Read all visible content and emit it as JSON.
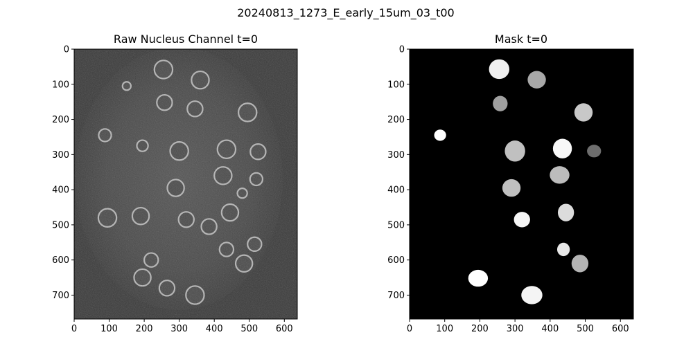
{
  "figure": {
    "suptitle": "20240813_1273_E_early_15um_03_t00"
  },
  "panels": [
    {
      "id": "raw",
      "title": "Raw Nucleus Channel t=0",
      "image_kind": "microscopy-grayscale",
      "background_color": "#3a3a3a",
      "x_ticks": [
        0,
        100,
        200,
        300,
        400,
        500,
        600
      ],
      "y_ticks": [
        0,
        100,
        200,
        300,
        400,
        500,
        600,
        700
      ],
      "x_range": [
        0,
        637
      ],
      "y_range": [
        0,
        768
      ],
      "rings": [
        {
          "x": 255,
          "y": 58,
          "r": 26
        },
        {
          "x": 360,
          "y": 88,
          "r": 25
        },
        {
          "x": 150,
          "y": 105,
          "r": 12
        },
        {
          "x": 258,
          "y": 152,
          "r": 22
        },
        {
          "x": 345,
          "y": 170,
          "r": 22
        },
        {
          "x": 495,
          "y": 180,
          "r": 26
        },
        {
          "x": 88,
          "y": 245,
          "r": 18
        },
        {
          "x": 195,
          "y": 275,
          "r": 16
        },
        {
          "x": 300,
          "y": 290,
          "r": 26
        },
        {
          "x": 435,
          "y": 285,
          "r": 26
        },
        {
          "x": 525,
          "y": 292,
          "r": 22
        },
        {
          "x": 425,
          "y": 360,
          "r": 25
        },
        {
          "x": 520,
          "y": 370,
          "r": 18
        },
        {
          "x": 290,
          "y": 395,
          "r": 24
        },
        {
          "x": 480,
          "y": 410,
          "r": 14
        },
        {
          "x": 95,
          "y": 480,
          "r": 26
        },
        {
          "x": 190,
          "y": 475,
          "r": 24
        },
        {
          "x": 320,
          "y": 485,
          "r": 22
        },
        {
          "x": 385,
          "y": 505,
          "r": 22
        },
        {
          "x": 445,
          "y": 465,
          "r": 24
        },
        {
          "x": 515,
          "y": 555,
          "r": 20
        },
        {
          "x": 435,
          "y": 570,
          "r": 20
        },
        {
          "x": 485,
          "y": 610,
          "r": 24
        },
        {
          "x": 220,
          "y": 600,
          "r": 20
        },
        {
          "x": 195,
          "y": 650,
          "r": 24
        },
        {
          "x": 265,
          "y": 680,
          "r": 22
        },
        {
          "x": 345,
          "y": 700,
          "r": 26
        }
      ]
    },
    {
      "id": "mask",
      "title": "Mask t=0",
      "image_kind": "segmentation-mask",
      "background_color": "#000000",
      "x_ticks": [
        0,
        100,
        200,
        300,
        400,
        500,
        600
      ],
      "y_ticks": [
        0,
        100,
        200,
        300,
        400,
        500,
        600,
        700
      ],
      "x_range": [
        0,
        637
      ],
      "y_range": [
        0,
        768
      ],
      "blobs": [
        {
          "x": 255,
          "y": 57,
          "rx": 29,
          "ry": 28,
          "gray": "#f0f0f0"
        },
        {
          "x": 362,
          "y": 87,
          "rx": 26,
          "ry": 25,
          "gray": "#a8a8a8"
        },
        {
          "x": 258,
          "y": 155,
          "rx": 21,
          "ry": 22,
          "gray": "#a0a0a0"
        },
        {
          "x": 495,
          "y": 180,
          "rx": 26,
          "ry": 26,
          "gray": "#c8c8c8"
        },
        {
          "x": 87,
          "y": 245,
          "rx": 17,
          "ry": 16,
          "gray": "#ffffff"
        },
        {
          "x": 300,
          "y": 290,
          "rx": 29,
          "ry": 30,
          "gray": "#c0c0c0"
        },
        {
          "x": 435,
          "y": 283,
          "rx": 27,
          "ry": 28,
          "gray": "#f8f8f8"
        },
        {
          "x": 525,
          "y": 290,
          "rx": 20,
          "ry": 18,
          "gray": "#6e6e6e"
        },
        {
          "x": 427,
          "y": 358,
          "rx": 28,
          "ry": 25,
          "gray": "#bcbcbc"
        },
        {
          "x": 290,
          "y": 395,
          "rx": 26,
          "ry": 25,
          "gray": "#c0c0c0"
        },
        {
          "x": 445,
          "y": 465,
          "rx": 23,
          "ry": 25,
          "gray": "#dcdcdc"
        },
        {
          "x": 320,
          "y": 485,
          "rx": 23,
          "ry": 22,
          "gray": "#f6f6f6"
        },
        {
          "x": 438,
          "y": 570,
          "rx": 18,
          "ry": 19,
          "gray": "#e8e8e8"
        },
        {
          "x": 485,
          "y": 610,
          "rx": 24,
          "ry": 25,
          "gray": "#b4b4b4"
        },
        {
          "x": 195,
          "y": 652,
          "rx": 28,
          "ry": 24,
          "gray": "#ffffff"
        },
        {
          "x": 348,
          "y": 700,
          "rx": 30,
          "ry": 26,
          "gray": "#f4f4f4"
        }
      ]
    }
  ]
}
